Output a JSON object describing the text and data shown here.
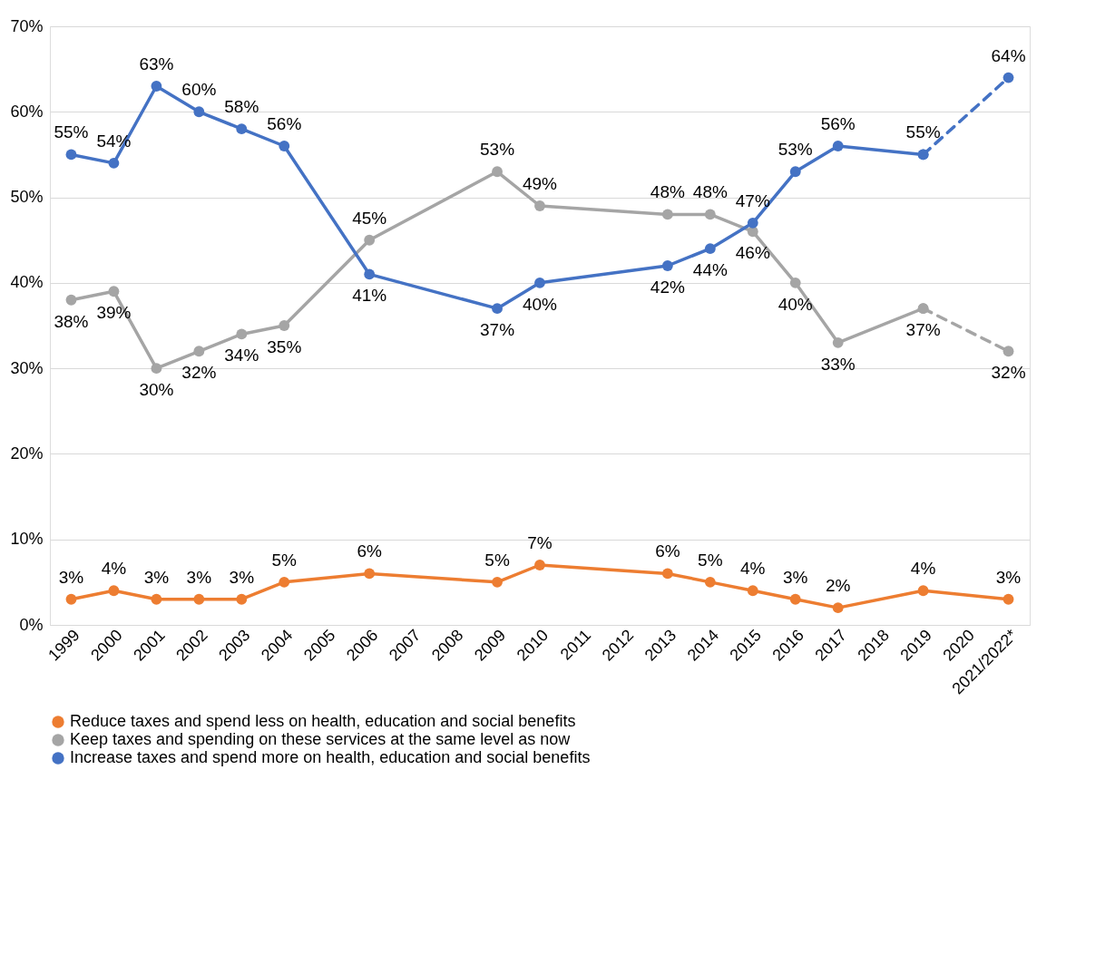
{
  "chart_data": {
    "type": "line",
    "categories": [
      "1999",
      "2000",
      "2001",
      "2002",
      "2003",
      "2004",
      "2005",
      "2006",
      "2007",
      "2008",
      "2009",
      "2010",
      "2011",
      "2012",
      "2013",
      "2014",
      "2015",
      "2016",
      "2017",
      "2018",
      "2019",
      "2020",
      "2021/2022*"
    ],
    "series": [
      {
        "name": "Reduce taxes and spend less on health, education and social benefits",
        "color": "#ed7d31",
        "line_style": "solid",
        "values": [
          3,
          4,
          3,
          3,
          3,
          5,
          null,
          6,
          null,
          null,
          5,
          7,
          null,
          null,
          6,
          5,
          4,
          3,
          2,
          null,
          4,
          null,
          3
        ],
        "value_labels": [
          "3%",
          "4%",
          "3%",
          "3%",
          "3%",
          "5%",
          null,
          "6%",
          null,
          null,
          "5%",
          "7%",
          null,
          null,
          "6%",
          "5%",
          "4%",
          "3%",
          "2%",
          null,
          "4%",
          null,
          "3%"
        ]
      },
      {
        "name": "Keep taxes and spending on these services at the same level as now",
        "color": "#a5a5a5",
        "line_style": "solid",
        "values": [
          38,
          39,
          30,
          32,
          34,
          35,
          null,
          45,
          null,
          null,
          53,
          49,
          null,
          null,
          48,
          48,
          46,
          40,
          33,
          null,
          37,
          null,
          null
        ],
        "value_labels": [
          "38%",
          "39%",
          "30%",
          "32%",
          "34%",
          "35%",
          null,
          "45%",
          null,
          null,
          "53%",
          "49%",
          null,
          null,
          "48%",
          "48%",
          "46%",
          "40%",
          "33%",
          null,
          "37%",
          null,
          null
        ]
      },
      {
        "name": "Increase taxes and spend more on health, education and social benefits",
        "color": "#4472c4",
        "line_style": "solid",
        "values": [
          55,
          54,
          63,
          60,
          58,
          56,
          null,
          41,
          null,
          null,
          37,
          40,
          null,
          null,
          42,
          44,
          47,
          53,
          56,
          null,
          55,
          null,
          null
        ],
        "value_labels": [
          "55%",
          "54%",
          "63%",
          "60%",
          "58%",
          "56%",
          null,
          "41%",
          null,
          null,
          "37%",
          "40%",
          null,
          null,
          "42%",
          "44%",
          "47%",
          "53%",
          "56%",
          null,
          "55%",
          null,
          null
        ]
      },
      {
        "color": "#a5a5a5",
        "line_style": "dashed",
        "values": [
          null,
          null,
          null,
          null,
          null,
          null,
          null,
          null,
          null,
          null,
          null,
          null,
          null,
          null,
          null,
          null,
          null,
          null,
          null,
          null,
          37,
          null,
          32
        ],
        "value_labels": [
          null,
          null,
          null,
          null,
          null,
          null,
          null,
          null,
          null,
          null,
          null,
          null,
          null,
          null,
          null,
          null,
          null,
          null,
          null,
          null,
          null,
          null,
          "32%"
        ]
      },
      {
        "color": "#4472c4",
        "line_style": "dashed",
        "values": [
          null,
          null,
          null,
          null,
          null,
          null,
          null,
          null,
          null,
          null,
          null,
          null,
          null,
          null,
          null,
          null,
          null,
          null,
          null,
          null,
          55,
          null,
          64
        ],
        "value_labels": [
          null,
          null,
          null,
          null,
          null,
          null,
          null,
          null,
          null,
          null,
          null,
          null,
          null,
          null,
          null,
          null,
          null,
          null,
          null,
          null,
          null,
          null,
          "64%"
        ]
      }
    ],
    "ylim": [
      0,
      70
    ],
    "yticks": [
      {
        "value": 0,
        "label": "0%"
      },
      {
        "value": 10,
        "label": "10%"
      },
      {
        "value": 20,
        "label": "20%"
      },
      {
        "value": 30,
        "label": "30%"
      },
      {
        "value": 40,
        "label": "40%"
      },
      {
        "value": 50,
        "label": "50%"
      },
      {
        "value": 60,
        "label": "60%"
      },
      {
        "value": 70,
        "label": "70%"
      }
    ],
    "grid": "y",
    "legend": "bottom",
    "marker": "circle"
  }
}
